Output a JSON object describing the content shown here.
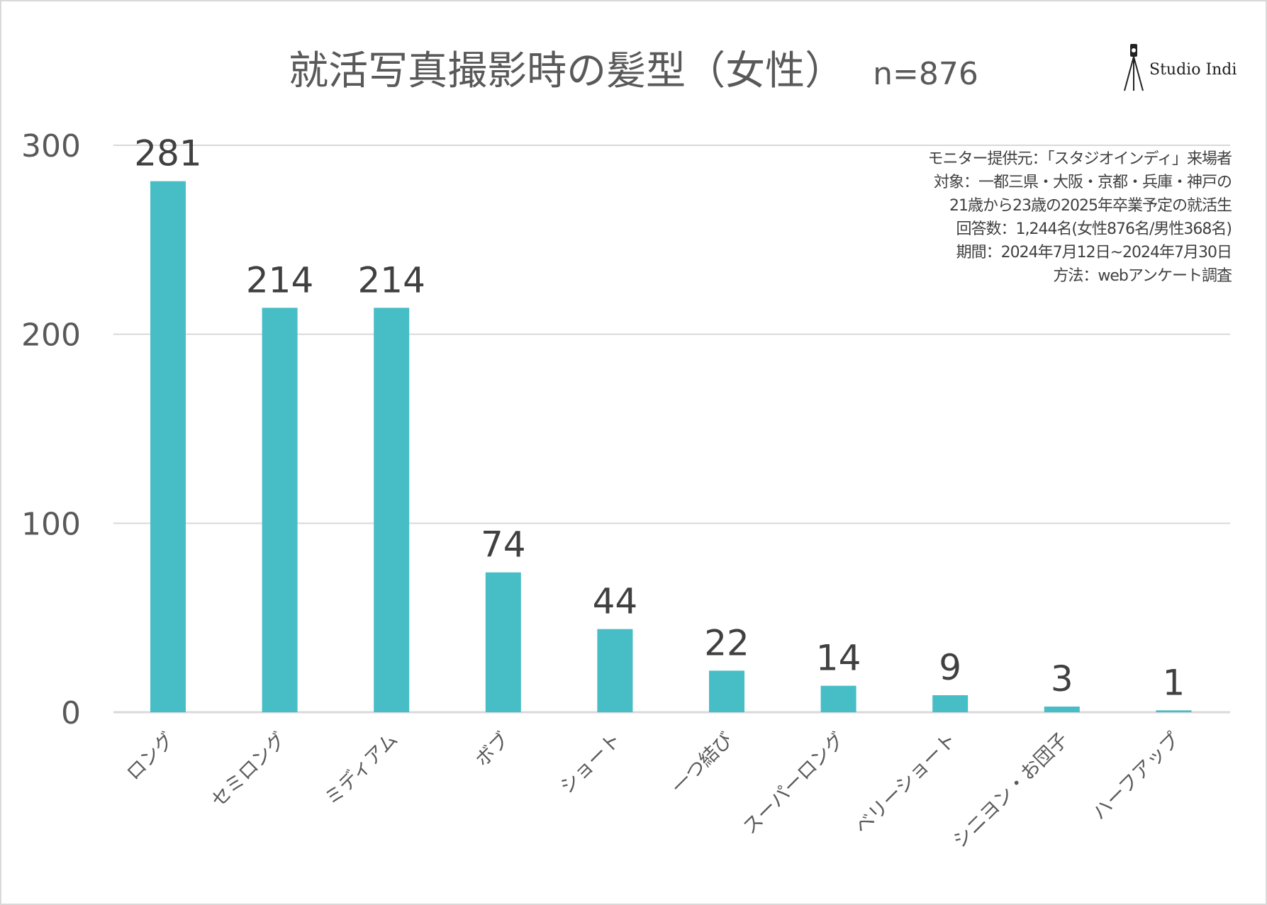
{
  "logo": {
    "text": "Studio Indi",
    "icon": "camera-tripod-icon"
  },
  "notes": [
    "モニター提供元：「スタジオインディ」来場者",
    "対象：一都三県・大阪・京都・兵庫・神戸の",
    "21歳から23歳の2025年卒業予定の就活生",
    "回答数：1,244名(女性876名/男性368名)",
    "期間：2024年7月12日~2024年7月30日",
    "方法：webアンケート調査"
  ],
  "chart_data": {
    "type": "bar",
    "title": "就活写真撮影時の髪型（女性）",
    "subtitle": "n=876",
    "categories": [
      "ロング",
      "セミロング",
      "ミディアム",
      "ボブ",
      "ショート",
      "一つ結び",
      "スーパーロング",
      "ベリーショート",
      "シニヨン・お団子",
      "ハーフアップ"
    ],
    "values": [
      281,
      214,
      214,
      74,
      44,
      22,
      14,
      9,
      3,
      1
    ],
    "ylim": [
      0,
      300
    ],
    "yticks": [
      0,
      100,
      200,
      300
    ],
    "grid": true,
    "xlabel": "",
    "ylabel": "",
    "bar_color": "#47BDC6",
    "grid_color": "#d9d9d9"
  }
}
